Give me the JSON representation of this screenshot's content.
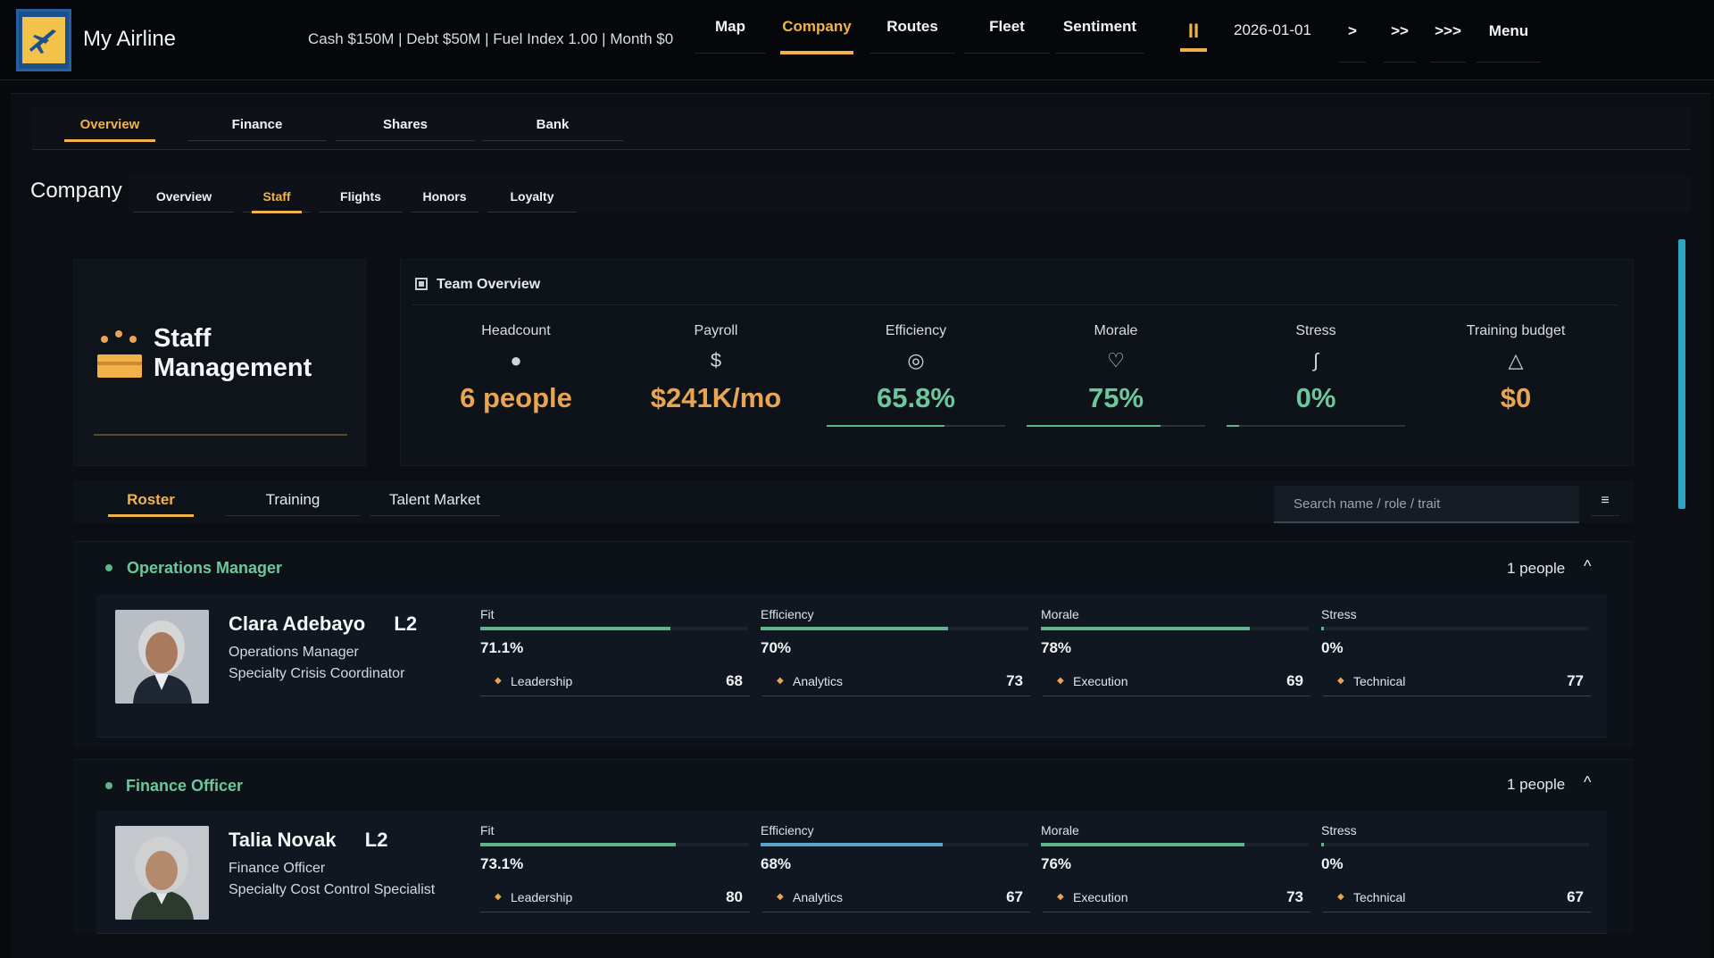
{
  "app": {
    "title": "My Airline"
  },
  "stats": {
    "text": "Cash $150M  |  Debt $50M  |  Fuel Index 1.00  |  Month $0"
  },
  "topnav": [
    "Map",
    "Company",
    "Routes",
    "Fleet",
    "Sentiment"
  ],
  "controls": {
    "pause": "II",
    "date": "2026-01-01",
    "speed1": ">",
    "speed2": ">>",
    "speed3": ">>>",
    "menu": "Menu"
  },
  "tabs_primary": [
    "Overview",
    "Finance",
    "Shares",
    "Bank"
  ],
  "section_label": "Company",
  "tabs_secondary": [
    "Overview",
    "Staff",
    "Flights",
    "Honors",
    "Loyalty"
  ],
  "staff_card": {
    "title_line1": "Staff",
    "title_line2": "Management"
  },
  "team_overview": {
    "title": "Team Overview",
    "metrics": [
      {
        "label": "Headcount",
        "icon": "●",
        "value": "6 people"
      },
      {
        "label": "Payroll",
        "icon": "$",
        "value": "$241K/mo"
      },
      {
        "label": "Efficiency",
        "icon": "◎",
        "value": "65.8%",
        "bar": 0.658
      },
      {
        "label": "Morale",
        "icon": "♡",
        "value": "75%",
        "bar": 0.75
      },
      {
        "label": "Stress",
        "icon": "∫",
        "value": "0%",
        "bar": 0.0
      },
      {
        "label": "Training budget",
        "icon": "△",
        "value": "$0"
      }
    ]
  },
  "roster_tabs": [
    "Roster",
    "Training",
    "Talent Market"
  ],
  "search": {
    "placeholder": "Search name / role / trait"
  },
  "list_icon": "≡",
  "colors": {
    "accent": "#f2b24a",
    "green": "#6cc79a",
    "blue": "#5aa3c8"
  },
  "groups": [
    {
      "title": "Operations Manager",
      "count": "1 people",
      "chevron": "^",
      "person": {
        "name": "Clara Adebayo",
        "level": "L2",
        "role": "Operations Manager",
        "specialty": "Specialty  Crisis Coordinator",
        "stats": [
          {
            "label": "Fit",
            "value": "71.1%",
            "fill": 0.711,
            "color": "#5fb58a"
          },
          {
            "label": "Efficiency",
            "value": "70%",
            "fill": 0.7,
            "color": "#5fb58a"
          },
          {
            "label": "Morale",
            "value": "78%",
            "fill": 0.78,
            "color": "#5fb58a"
          },
          {
            "label": "Stress",
            "value": "0%",
            "fill": 0.0,
            "color": "#5fb58a"
          }
        ],
        "skills": [
          {
            "name": "Leadership",
            "value": "68"
          },
          {
            "name": "Analytics",
            "value": "73"
          },
          {
            "name": "Execution",
            "value": "69"
          },
          {
            "name": "Technical",
            "value": "77"
          }
        ]
      }
    },
    {
      "title": "Finance Officer",
      "count": "1 people",
      "chevron": "^",
      "person": {
        "name": "Talia Novak",
        "level": "L2",
        "role": "Finance Officer",
        "specialty": "Specialty  Cost Control Specialist",
        "stats": [
          {
            "label": "Fit",
            "value": "73.1%",
            "fill": 0.731,
            "color": "#5fb58a"
          },
          {
            "label": "Efficiency",
            "value": "68%",
            "fill": 0.68,
            "color": "#5aa3c8"
          },
          {
            "label": "Morale",
            "value": "76%",
            "fill": 0.76,
            "color": "#5fb58a"
          },
          {
            "label": "Stress",
            "value": "0%",
            "fill": 0.0,
            "color": "#5fb58a"
          }
        ],
        "skills": [
          {
            "name": "Leadership",
            "value": "80"
          },
          {
            "name": "Analytics",
            "value": "67"
          },
          {
            "name": "Execution",
            "value": "73"
          },
          {
            "name": "Technical",
            "value": "67"
          }
        ]
      }
    }
  ]
}
